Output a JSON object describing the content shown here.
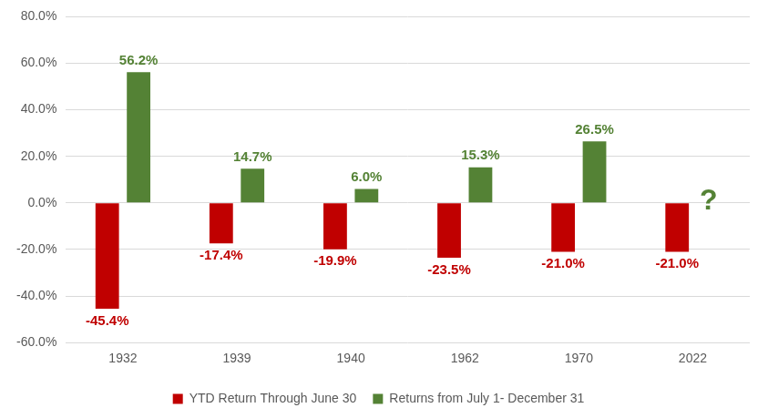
{
  "chart_data": {
    "type": "bar",
    "categories": [
      "1932",
      "1939",
      "1940",
      "1962",
      "1970",
      "2022"
    ],
    "series": [
      {
        "name": "YTD Return Through June 30",
        "color": "#c00000",
        "values": [
          -45.4,
          -17.4,
          -19.9,
          -23.5,
          -21.0,
          -21.0
        ],
        "value_labels": [
          "-45.4%",
          "-17.4%",
          "-19.9%",
          "-23.5%",
          "-21.0%",
          "-21.0%"
        ]
      },
      {
        "name": "Returns from July 1- December 31",
        "color": "#548235",
        "values": [
          56.2,
          14.7,
          6.0,
          15.3,
          26.5,
          null
        ],
        "value_labels": [
          "56.2%",
          "14.7%",
          "6.0%",
          "15.3%",
          "26.5%",
          null
        ]
      }
    ],
    "annotations": [
      {
        "text": "?",
        "category": "2022",
        "series": "Returns from July 1- December 31"
      }
    ],
    "ylim": [
      -60,
      80
    ],
    "yticks": [
      {
        "value": -60,
        "label": "-60.0%"
      },
      {
        "value": -40,
        "label": "-40.0%"
      },
      {
        "value": -20,
        "label": "-20.0%"
      },
      {
        "value": 0,
        "label": "0.0%"
      },
      {
        "value": 20,
        "label": "20.0%"
      },
      {
        "value": 40,
        "label": "40.0%"
      },
      {
        "value": 60,
        "label": "60.0%"
      },
      {
        "value": 80,
        "label": "80.0%"
      }
    ],
    "grid": true,
    "legend": "bottom",
    "data_labels": true
  }
}
